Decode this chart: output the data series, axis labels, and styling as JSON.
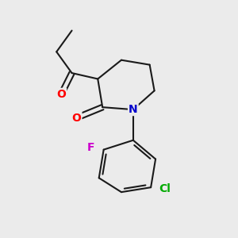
{
  "background_color": "#ebebeb",
  "bond_color": "#1a1a1a",
  "bond_width": 1.5,
  "atom_colors": {
    "O": "#ff0000",
    "N": "#0000cc",
    "F": "#cc00cc",
    "Cl": "#00aa00"
  },
  "figsize": [
    3.0,
    3.0
  ],
  "dpi": 100
}
